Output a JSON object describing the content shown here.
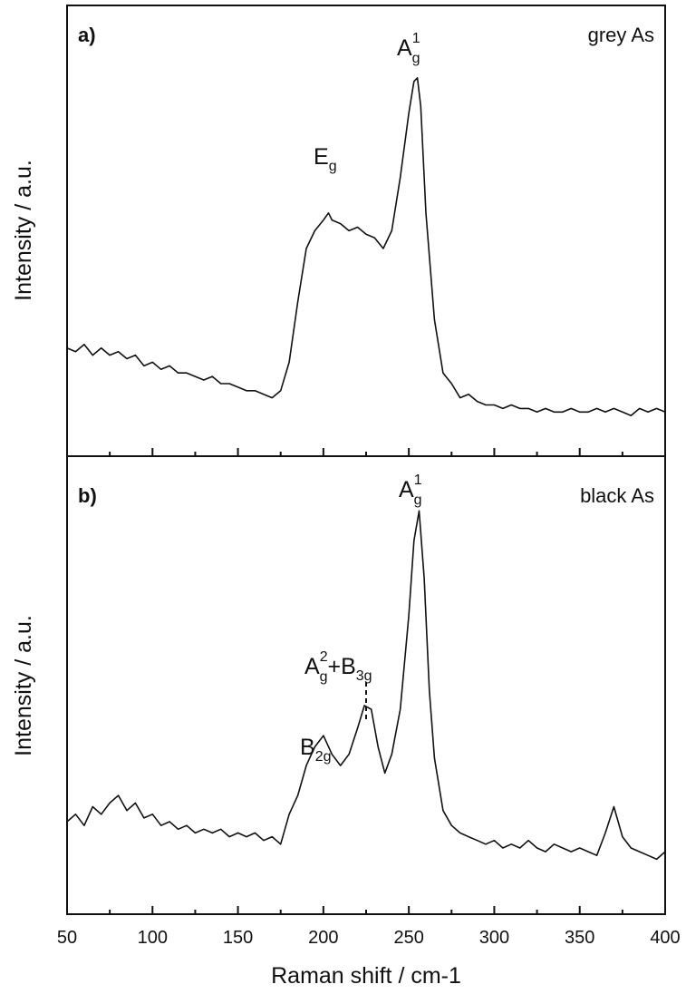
{
  "chart_data": [
    {
      "type": "line",
      "panel_label": "a)",
      "sample_label": "grey As",
      "xlabel": "Raman shift / cm-1",
      "ylabel": "Intensity / a.u.",
      "xlim": [
        50,
        400
      ],
      "x_ticks": [
        50,
        100,
        150,
        200,
        250,
        300,
        350,
        400
      ],
      "y_ticks_shown": false,
      "series": [
        {
          "x": [
            50,
            55,
            60,
            65,
            70,
            75,
            80,
            85,
            90,
            95,
            100,
            105,
            110,
            115,
            120,
            125,
            130,
            135,
            140,
            145,
            150,
            155,
            160,
            165,
            170,
            175,
            180,
            185,
            190,
            195,
            200,
            203,
            205,
            210,
            215,
            220,
            225,
            230,
            235,
            240,
            245,
            250,
            253,
            255,
            257,
            260,
            265,
            270,
            275,
            280,
            285,
            290,
            295,
            300,
            305,
            310,
            315,
            320,
            325,
            330,
            335,
            340,
            345,
            350,
            355,
            360,
            365,
            370,
            375,
            380,
            385,
            390,
            395,
            400
          ],
          "y": [
            0.22,
            0.21,
            0.23,
            0.2,
            0.22,
            0.2,
            0.21,
            0.19,
            0.2,
            0.17,
            0.18,
            0.16,
            0.17,
            0.15,
            0.15,
            0.14,
            0.13,
            0.14,
            0.12,
            0.12,
            0.11,
            0.1,
            0.1,
            0.09,
            0.08,
            0.1,
            0.18,
            0.35,
            0.5,
            0.55,
            0.58,
            0.6,
            0.58,
            0.57,
            0.55,
            0.56,
            0.54,
            0.53,
            0.5,
            0.55,
            0.7,
            0.88,
            0.97,
            0.98,
            0.9,
            0.6,
            0.3,
            0.15,
            0.12,
            0.08,
            0.09,
            0.07,
            0.06,
            0.06,
            0.05,
            0.06,
            0.05,
            0.05,
            0.04,
            0.05,
            0.04,
            0.04,
            0.05,
            0.04,
            0.04,
            0.05,
            0.04,
            0.05,
            0.04,
            0.03,
            0.05,
            0.04,
            0.05,
            0.04
          ]
        }
      ],
      "annotations": [
        {
          "text": "E",
          "sub": "g",
          "x": 202
        },
        {
          "text": "A",
          "sup": "1",
          "sub": "g",
          "x": 255
        }
      ]
    },
    {
      "type": "line",
      "panel_label": "b)",
      "sample_label": "black As",
      "xlabel": "Raman shift / cm-1",
      "ylabel": "Intensity / a.u.",
      "xlim": [
        50,
        400
      ],
      "x_ticks": [
        50,
        100,
        150,
        200,
        250,
        300,
        350,
        400
      ],
      "y_ticks_shown": false,
      "series": [
        {
          "x": [
            50,
            55,
            60,
            65,
            70,
            75,
            80,
            85,
            90,
            95,
            100,
            105,
            110,
            115,
            120,
            125,
            130,
            135,
            140,
            145,
            150,
            155,
            160,
            165,
            170,
            175,
            180,
            185,
            190,
            195,
            200,
            205,
            210,
            215,
            220,
            224,
            228,
            232,
            236,
            240,
            245,
            250,
            253,
            256,
            259,
            262,
            265,
            270,
            275,
            280,
            285,
            290,
            295,
            300,
            305,
            310,
            315,
            320,
            325,
            330,
            335,
            340,
            345,
            350,
            355,
            360,
            365,
            370,
            375,
            380,
            385,
            390,
            395,
            400
          ],
          "y": [
            0.15,
            0.17,
            0.14,
            0.19,
            0.17,
            0.2,
            0.22,
            0.18,
            0.2,
            0.16,
            0.17,
            0.14,
            0.15,
            0.13,
            0.14,
            0.12,
            0.13,
            0.12,
            0.13,
            0.11,
            0.12,
            0.11,
            0.12,
            0.1,
            0.11,
            0.09,
            0.17,
            0.22,
            0.3,
            0.35,
            0.38,
            0.33,
            0.3,
            0.33,
            0.4,
            0.46,
            0.45,
            0.35,
            0.28,
            0.33,
            0.45,
            0.7,
            0.9,
            0.98,
            0.8,
            0.5,
            0.32,
            0.18,
            0.14,
            0.12,
            0.11,
            0.1,
            0.09,
            0.1,
            0.08,
            0.09,
            0.08,
            0.1,
            0.08,
            0.07,
            0.09,
            0.08,
            0.07,
            0.08,
            0.07,
            0.06,
            0.12,
            0.19,
            0.11,
            0.08,
            0.07,
            0.06,
            0.05,
            0.07
          ]
        }
      ],
      "annotations": [
        {
          "text": "B",
          "sub": "2g",
          "x": 201
        },
        {
          "text": "A",
          "sup": "2",
          "sub": "g",
          "text2": "+B",
          "sub2": "3g",
          "x": 225
        },
        {
          "text": "A",
          "sup": "1",
          "sub": "g",
          "x": 256
        }
      ]
    }
  ]
}
